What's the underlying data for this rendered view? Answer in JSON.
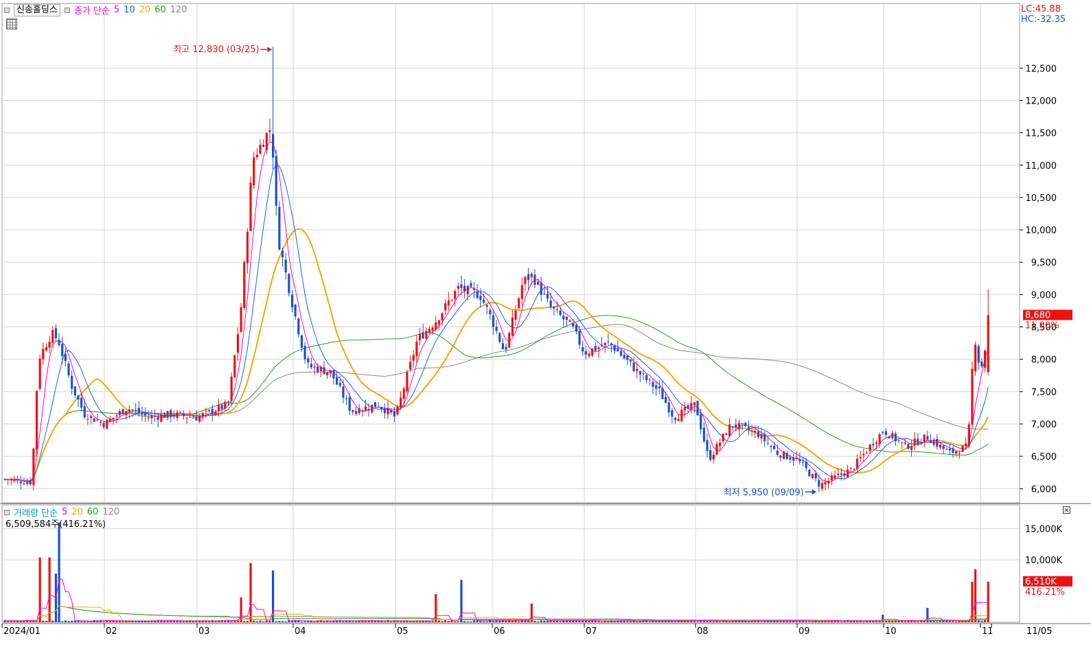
{
  "header": {
    "ticker": "신송홀딩스",
    "ma_label": "종가 단순",
    "ma_periods": [
      "5",
      "10",
      "20",
      "60",
      "120"
    ],
    "ma_colors": [
      "#ff00cc",
      "#1560ff",
      "#f5a800",
      "#1ca31c",
      "#888888"
    ]
  },
  "right_info": {
    "lc": "LC:45.88",
    "hc": "HC:-32.35"
  },
  "annotations": {
    "high": "최고 12,830 (03/25)",
    "low": "최저 5,950 (09/09)"
  },
  "price_panel": {
    "y_ticks": [
      "12,500",
      "12,000",
      "11,500",
      "11,000",
      "10,500",
      "10,000",
      "9,500",
      "9,000",
      "8,500",
      "8,000",
      "7,500",
      "7,000",
      "6,500",
      "6,000"
    ],
    "y_tick_values": [
      12500,
      12000,
      11500,
      11000,
      10500,
      10000,
      9500,
      9000,
      8500,
      8000,
      7500,
      7000,
      6500,
      6000
    ],
    "ylim": [
      5780,
      13500
    ],
    "current_price": "8,680",
    "current_change": "11.00%",
    "current_value": 8680
  },
  "volume_panel": {
    "label": "거래량 단순",
    "ma_periods": [
      "5",
      "20",
      "60",
      "120"
    ],
    "ma_colors": [
      "#ff00cc",
      "#f5a800",
      "#1ca31c",
      "#888888"
    ],
    "info": "6,509,584주(416.21%)",
    "y_ticks": [
      "15,000K",
      "10,000K"
    ],
    "y_tick_values": [
      15000,
      10000
    ],
    "ylim": [
      0,
      17500
    ],
    "current_volume": "6,510K",
    "current_ratio": "416.21%",
    "current_value": 6510
  },
  "x_axis": {
    "labels": [
      "2024/01",
      "02",
      "03",
      "04",
      "05",
      "06",
      "07",
      "08",
      "09",
      "10",
      "11",
      "11/05"
    ]
  },
  "colors": {
    "up": "#ee1111",
    "down": "#1a4fd6",
    "grid": "#d4d4d4",
    "axis": "#000000"
  },
  "chart_data": {
    "type": "candlestick",
    "title": "",
    "x_range": [
      "2024/01",
      "11/05"
    ],
    "price_ylim": [
      5780,
      13500
    ],
    "volume_ylim": [
      0,
      17500
    ],
    "ohlc_keyframes": [
      {
        "date": "2024/01",
        "close": 6150
      },
      {
        "date": "01/10",
        "close": 6100
      },
      {
        "date": "01/12",
        "close": 8000
      },
      {
        "date": "01/16",
        "close": 8400
      },
      {
        "date": "01/18",
        "close": 8300
      },
      {
        "date": "01/22",
        "close": 7600
      },
      {
        "date": "01/26",
        "close": 7150
      },
      {
        "date": "02",
        "close": 7000
      },
      {
        "date": "02/08",
        "close": 7250
      },
      {
        "date": "02/15",
        "close": 7100
      },
      {
        "date": "02/22",
        "close": 7150
      },
      {
        "date": "03",
        "close": 7100
      },
      {
        "date": "03/11",
        "close": 7300
      },
      {
        "date": "03/15",
        "close": 8700
      },
      {
        "date": "03/19",
        "close": 11100
      },
      {
        "date": "03/25",
        "close": 11600
      },
      {
        "date": "03/27",
        "close": 9900
      },
      {
        "date": "04",
        "close": 8800
      },
      {
        "date": "04/05",
        "close": 7900
      },
      {
        "date": "04/12",
        "close": 7800
      },
      {
        "date": "04/18",
        "close": 7200
      },
      {
        "date": "04/26",
        "close": 7300
      },
      {
        "date": "05",
        "close": 7100
      },
      {
        "date": "05/08",
        "close": 8300
      },
      {
        "date": "05/14",
        "close": 8600
      },
      {
        "date": "05/21",
        "close": 9100
      },
      {
        "date": "05/28",
        "close": 9000
      },
      {
        "date": "06",
        "close": 8600
      },
      {
        "date": "06/05",
        "close": 8100
      },
      {
        "date": "06/11",
        "close": 9200
      },
      {
        "date": "06/14",
        "close": 9300
      },
      {
        "date": "06/20",
        "close": 8800
      },
      {
        "date": "06/27",
        "close": 8500
      },
      {
        "date": "07",
        "close": 8100
      },
      {
        "date": "07/08",
        "close": 8250
      },
      {
        "date": "07/16",
        "close": 7800
      },
      {
        "date": "07/22",
        "close": 7500
      },
      {
        "date": "07/26",
        "close": 7100
      },
      {
        "date": "08",
        "close": 7300
      },
      {
        "date": "08/05",
        "close": 6450
      },
      {
        "date": "08/12",
        "close": 7000
      },
      {
        "date": "08/20",
        "close": 6850
      },
      {
        "date": "08/26",
        "close": 6550
      },
      {
        "date": "09",
        "close": 6450
      },
      {
        "date": "09/09",
        "close": 6050
      },
      {
        "date": "09/13",
        "close": 6150
      },
      {
        "date": "09/20",
        "close": 6300
      },
      {
        "date": "09/27",
        "close": 6700
      },
      {
        "date": "10",
        "close": 6900
      },
      {
        "date": "10/08",
        "close": 6650
      },
      {
        "date": "10/15",
        "close": 6800
      },
      {
        "date": "10/22",
        "close": 6550
      },
      {
        "date": "10/28",
        "close": 6650
      },
      {
        "date": "10/30",
        "close": 8400
      },
      {
        "date": "11",
        "close": 7800
      },
      {
        "date": "11/05",
        "close": 8680
      }
    ],
    "annotated_high": {
      "date": "03/25",
      "value": 12830
    },
    "annotated_low": {
      "date": "09/09",
      "value": 5950
    },
    "last": {
      "close": 8680,
      "change_pct": 11.0,
      "volume_k": 6510,
      "volume_ratio_pct": 416.21
    },
    "volume_spikes_k": [
      {
        "date": "01/12",
        "value": 10400
      },
      {
        "date": "01/15",
        "value": 10400
      },
      {
        "date": "01/17",
        "value": 7800
      },
      {
        "date": "01/18",
        "value": 16000
      },
      {
        "date": "03/15",
        "value": 4000
      },
      {
        "date": "03/18",
        "value": 9500
      },
      {
        "date": "03/25",
        "value": 8300
      },
      {
        "date": "05/14",
        "value": 4500
      },
      {
        "date": "05/22",
        "value": 6800
      },
      {
        "date": "06/14",
        "value": 3000
      },
      {
        "date": "10/01",
        "value": 1200
      },
      {
        "date": "10/15",
        "value": 2300
      },
      {
        "date": "10/29",
        "value": 6500
      },
      {
        "date": "10/30",
        "value": 8500
      },
      {
        "date": "11/04",
        "value": 6700
      },
      {
        "date": "11/05",
        "value": 6510
      }
    ]
  }
}
